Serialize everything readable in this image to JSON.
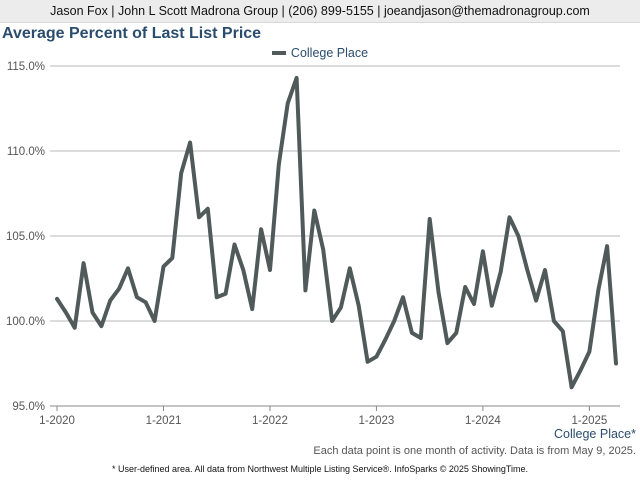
{
  "header": {
    "contact": "Jason Fox | John L Scott Madrona Group | (206) 899-5155 | joeandjason@themadronagroup.com"
  },
  "footer": {
    "area_label": "College Place*",
    "note": "Each data point is one month of activity. Data is from May 9, 2025.",
    "credit": "* User-defined area. All data from Northwest Multiple Listing Service®. InfoSparks © 2025 ShowingTime."
  },
  "colors": {
    "series": "#505a58",
    "title": "#2a4d6e",
    "grid": "#b8b8b8"
  },
  "chart_data": {
    "type": "line",
    "title": "Average Percent of Last List Price",
    "legend_position": "top",
    "grid": true,
    "ylim": [
      95,
      115
    ],
    "y_ticks": [
      "95.0%",
      "100.0%",
      "105.0%",
      "110.0%",
      "115.0%"
    ],
    "y_tick_values": [
      95,
      100,
      105,
      110,
      115
    ],
    "x_ticks": [
      "1-2020",
      "1-2021",
      "1-2022",
      "1-2023",
      "1-2024",
      "1-2025"
    ],
    "x_tick_values": [
      "2020-01",
      "2021-01",
      "2022-01",
      "2023-01",
      "2024-01",
      "2025-01"
    ],
    "x": [
      "2020-01",
      "2020-02",
      "2020-03",
      "2020-04",
      "2020-05",
      "2020-06",
      "2020-07",
      "2020-08",
      "2020-09",
      "2020-10",
      "2020-11",
      "2020-12",
      "2021-01",
      "2021-02",
      "2021-03",
      "2021-04",
      "2021-05",
      "2021-06",
      "2021-07",
      "2021-08",
      "2021-09",
      "2021-10",
      "2021-11",
      "2021-12",
      "2022-01",
      "2022-02",
      "2022-03",
      "2022-04",
      "2022-05",
      "2022-06",
      "2022-07",
      "2022-08",
      "2022-09",
      "2022-10",
      "2022-11",
      "2022-12",
      "2023-01",
      "2023-02",
      "2023-03",
      "2023-04",
      "2023-05",
      "2023-06",
      "2023-07",
      "2023-08",
      "2023-09",
      "2023-10",
      "2023-11",
      "2023-12",
      "2024-01",
      "2024-02",
      "2024-03",
      "2024-04",
      "2024-05",
      "2024-06",
      "2024-07",
      "2024-08",
      "2024-09",
      "2024-10",
      "2024-11",
      "2024-12",
      "2025-01",
      "2025-02",
      "2025-03",
      "2025-04"
    ],
    "series": [
      {
        "name": "College Place",
        "values": [
          101.3,
          100.5,
          99.6,
          103.4,
          100.5,
          99.7,
          101.2,
          101.9,
          103.1,
          101.4,
          101.1,
          100.0,
          103.2,
          103.7,
          108.7,
          110.5,
          106.1,
          106.6,
          101.4,
          101.6,
          104.5,
          103.0,
          100.7,
          105.4,
          103.0,
          109.2,
          112.8,
          114.3,
          101.8,
          106.5,
          104.2,
          100.0,
          100.8,
          103.1,
          100.9,
          97.6,
          97.9,
          98.9,
          100.0,
          101.4,
          99.3,
          99.0,
          106.0,
          101.7,
          98.7,
          99.3,
          102.0,
          101.0,
          104.1,
          100.9,
          102.9,
          106.1,
          105.0,
          103.0,
          101.2,
          103.0,
          100.0,
          99.4,
          96.1,
          97.1,
          98.2,
          101.8,
          104.4,
          97.5
        ]
      }
    ]
  }
}
